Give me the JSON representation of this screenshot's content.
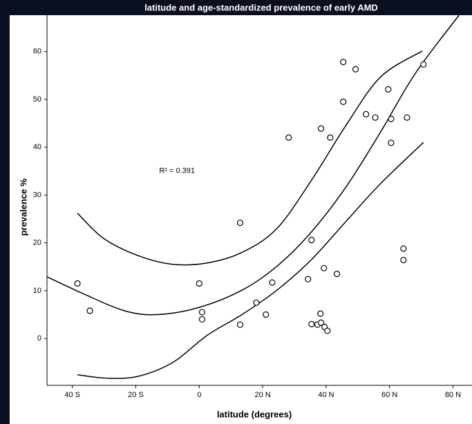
{
  "chart_data": {
    "type": "scatter",
    "title": "latitude and age-standardized prevalence of early AMD",
    "x_label": "latitude (degrees)",
    "y_label": "prevalence %",
    "annotation": "R² = 0.391",
    "x": [
      -38.4,
      -34.5,
      0,
      0.9,
      0.9,
      12.9,
      12.9,
      18,
      21,
      23,
      28.2,
      34.3,
      35.4,
      35.4,
      37.3,
      38.4,
      38.2,
      38.4,
      39.3,
      39.5,
      40.4,
      41.3,
      43.4,
      45.4,
      45.4,
      49.3,
      52.6,
      55.5,
      59.6,
      60.5,
      60.5,
      64.4,
      64.4,
      65.5,
      70.7
    ],
    "values": [
      11.5,
      5.8,
      11.5,
      5.5,
      4,
      24.2,
      2.9,
      7.5,
      5,
      11.7,
      42,
      12.4,
      20.6,
      3,
      2.9,
      43.9,
      5.2,
      3.3,
      14.7,
      2.4,
      1.6,
      42,
      13.5,
      57.8,
      49.5,
      56.3,
      46.9,
      46.2,
      52.1,
      45.9,
      40.9,
      18.8,
      16.4,
      46.2,
      57.3
    ],
    "color": "#000000",
    "lines": [
      {
        "x": [
          -48,
          -36.7,
          -23.6,
          -13.1,
          0,
          13.5,
          24.5,
          35.4,
          46.3,
          57.2,
          68.1,
          81.9
        ],
        "values": [
          12.9,
          9.4,
          5.8,
          5.0,
          6.5,
          10.1,
          15.1,
          22.3,
          31.7,
          43.2,
          55.4,
          67.6
        ]
      },
      {
        "x": [
          -38.4,
          -30.1,
          -19.2,
          -8.3,
          2.6,
          13.5,
          24.5,
          35.4,
          46.3,
          57.2,
          70.3
        ],
        "values": [
          26.2,
          20.9,
          17.3,
          15.5,
          15.8,
          18.0,
          23.0,
          33.1,
          44.6,
          54.7,
          60.1
        ]
      },
      {
        "x": [
          -38.4,
          -29,
          -19.2,
          -8.3,
          2.6,
          13.5,
          24.5,
          35.4,
          46.3,
          57.2,
          70.7
        ],
        "values": [
          -7.6,
          -8.3,
          -7.9,
          -5.0,
          0.7,
          5.0,
          10.1,
          16.5,
          24.5,
          32.4,
          41.0
        ]
      }
    ],
    "xlim": [
      -48,
      86
    ],
    "ylim": [
      -9.8,
      67.6
    ],
    "xticks": [
      {
        "value": -40,
        "label": "40 S"
      },
      {
        "value": -20,
        "label": "20 S"
      },
      0,
      {
        "value": 20,
        "label": "20 N"
      },
      {
        "value": 40,
        "label": "40 N"
      },
      {
        "value": 60,
        "label": "60 N"
      },
      {
        "value": 80,
        "label": "80 N"
      }
    ],
    "yticks": [
      0,
      10,
      20,
      30,
      40,
      50,
      60
    ]
  }
}
